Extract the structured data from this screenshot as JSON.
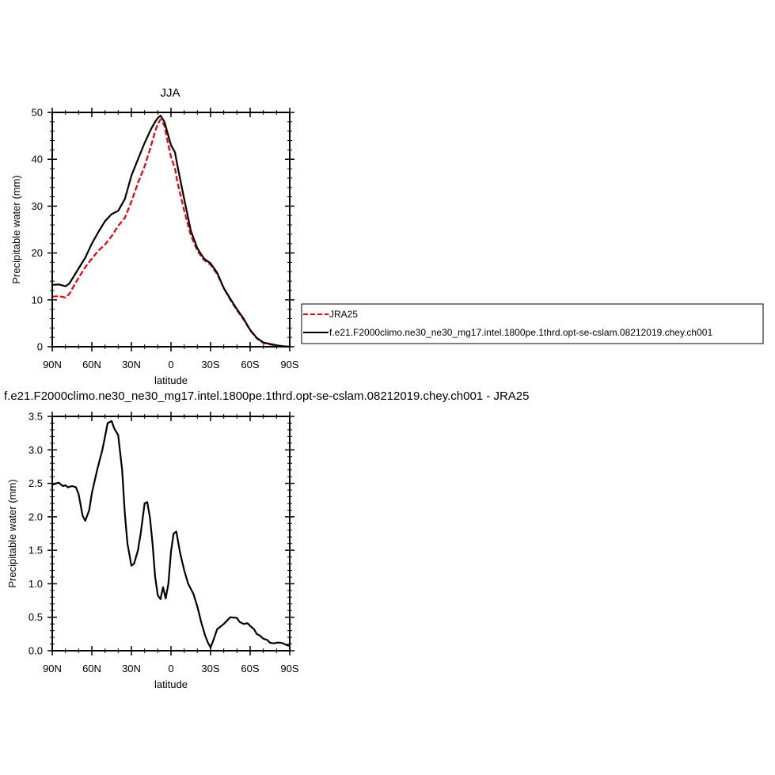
{
  "chart_data": [
    {
      "type": "line",
      "title": "JJA",
      "xlabel": "latitude",
      "ylabel": "Precipitable water (mm)",
      "xlim": [
        90,
        -90
      ],
      "ylim": [
        0,
        50
      ],
      "x_ticks": [
        90,
        60,
        30,
        0,
        -30,
        -60,
        -90
      ],
      "x_tick_labels": [
        "90N",
        "60N",
        "30N",
        "0",
        "30S",
        "60S",
        "90S"
      ],
      "y_ticks": [
        0,
        10,
        20,
        30,
        40,
        50
      ],
      "y_tick_labels": [
        "0",
        "10",
        "20",
        "30",
        "40",
        "50"
      ],
      "legend_position": "right",
      "series": [
        {
          "name": "JRA25",
          "color": "#e8000b",
          "dash": "dashed",
          "x": [
            90,
            85,
            80,
            77,
            72,
            65,
            60,
            55,
            50,
            45,
            40,
            35,
            30,
            25,
            20,
            15,
            12,
            10,
            8,
            5,
            2,
            0,
            -3,
            -5,
            -10,
            -15,
            -20,
            -25,
            -30,
            -35,
            -40,
            -45,
            -50,
            -55,
            -60,
            -65,
            -70,
            -75,
            -80,
            -85,
            -90
          ],
          "values": [
            10.7,
            10.8,
            10.5,
            11.3,
            13.8,
            17.0,
            18.8,
            20.5,
            21.8,
            23.6,
            25.8,
            27.5,
            31.0,
            35.0,
            38.5,
            43.0,
            46.0,
            47.5,
            48.5,
            47.2,
            43.0,
            40.5,
            38.0,
            35.0,
            29.0,
            23.8,
            20.5,
            18.5,
            17.5,
            15.5,
            12.5,
            10.0,
            7.8,
            5.8,
            3.5,
            1.8,
            0.8,
            0.5,
            0.2,
            0.1,
            0.0
          ]
        },
        {
          "name": "f.e21.F2000climo.ne30_ne30_mg17.intel.1800pe.1thrd.opt-se-cslam.08212019.chey.ch001",
          "color": "#000000",
          "dash": "solid",
          "x": [
            90,
            85,
            80,
            77,
            72,
            65,
            60,
            55,
            50,
            45,
            40,
            35,
            30,
            25,
            20,
            15,
            12,
            10,
            8,
            5,
            2,
            0,
            -3,
            -5,
            -10,
            -15,
            -20,
            -25,
            -30,
            -35,
            -40,
            -45,
            -50,
            -55,
            -60,
            -65,
            -70,
            -75,
            -80,
            -85,
            -90
          ],
          "values": [
            13.2,
            13.3,
            12.9,
            13.5,
            15.8,
            19.0,
            22.0,
            24.5,
            26.8,
            28.3,
            29.0,
            31.5,
            36.5,
            40.0,
            43.5,
            46.5,
            48.0,
            48.8,
            49.3,
            48.0,
            45.0,
            43.0,
            41.5,
            38.5,
            31.5,
            24.8,
            21.0,
            18.8,
            17.8,
            15.8,
            12.5,
            10.2,
            8.0,
            6.0,
            3.6,
            1.9,
            0.9,
            0.6,
            0.3,
            0.1,
            0.0
          ]
        }
      ]
    },
    {
      "type": "line",
      "title": "f.e21.F2000climo.ne30_ne30_mg17.intel.1800pe.1thrd.opt-se-cslam.08212019.chey.ch001 - JRA25",
      "xlabel": "latitude",
      "ylabel": "Precipitable water (mm)",
      "xlim": [
        90,
        -90
      ],
      "ylim": [
        0,
        3.5
      ],
      "x_ticks": [
        90,
        60,
        30,
        0,
        -30,
        -60,
        -90
      ],
      "x_tick_labels": [
        "90N",
        "60N",
        "30N",
        "0",
        "30S",
        "60S",
        "90S"
      ],
      "y_ticks": [
        0,
        0.5,
        1.0,
        1.5,
        2.0,
        2.5,
        3.0,
        3.5
      ],
      "y_tick_labels": [
        "0.0",
        "0.5",
        "1.0",
        "1.5",
        "2.0",
        "2.5",
        "3.0",
        "3.5"
      ],
      "series": [
        {
          "color": "#000000",
          "dash": "solid",
          "x": [
            90,
            85,
            82,
            80,
            78,
            75,
            72,
            70,
            67,
            65,
            62,
            60,
            56,
            52,
            50,
            48,
            45,
            43,
            40,
            37,
            35,
            33,
            30,
            28,
            25,
            23,
            20,
            18,
            16,
            14,
            12,
            10,
            8,
            6,
            4,
            2,
            0,
            -2,
            -4,
            -7,
            -10,
            -13,
            -17,
            -20,
            -23,
            -26,
            -28,
            -30,
            -32,
            -35,
            -40,
            -45,
            -50,
            -52,
            -55,
            -58,
            -60,
            -63,
            -65,
            -67,
            -70,
            -73,
            -75,
            -78,
            -80,
            -83,
            -85,
            -87,
            -90
          ],
          "values": [
            2.48,
            2.51,
            2.46,
            2.47,
            2.44,
            2.46,
            2.44,
            2.34,
            2.02,
            1.94,
            2.1,
            2.35,
            2.7,
            3.0,
            3.2,
            3.4,
            3.43,
            3.32,
            3.22,
            2.7,
            2.05,
            1.6,
            1.27,
            1.3,
            1.5,
            1.75,
            2.2,
            2.22,
            2.0,
            1.6,
            1.1,
            0.83,
            0.77,
            0.95,
            0.78,
            1.0,
            1.48,
            1.75,
            1.78,
            1.45,
            1.2,
            1.0,
            0.85,
            0.66,
            0.42,
            0.22,
            0.12,
            0.05,
            0.15,
            0.32,
            0.4,
            0.5,
            0.49,
            0.43,
            0.4,
            0.41,
            0.37,
            0.32,
            0.25,
            0.23,
            0.18,
            0.16,
            0.12,
            0.11,
            0.12,
            0.12,
            0.11,
            0.09,
            0.07
          ]
        }
      ]
    }
  ]
}
